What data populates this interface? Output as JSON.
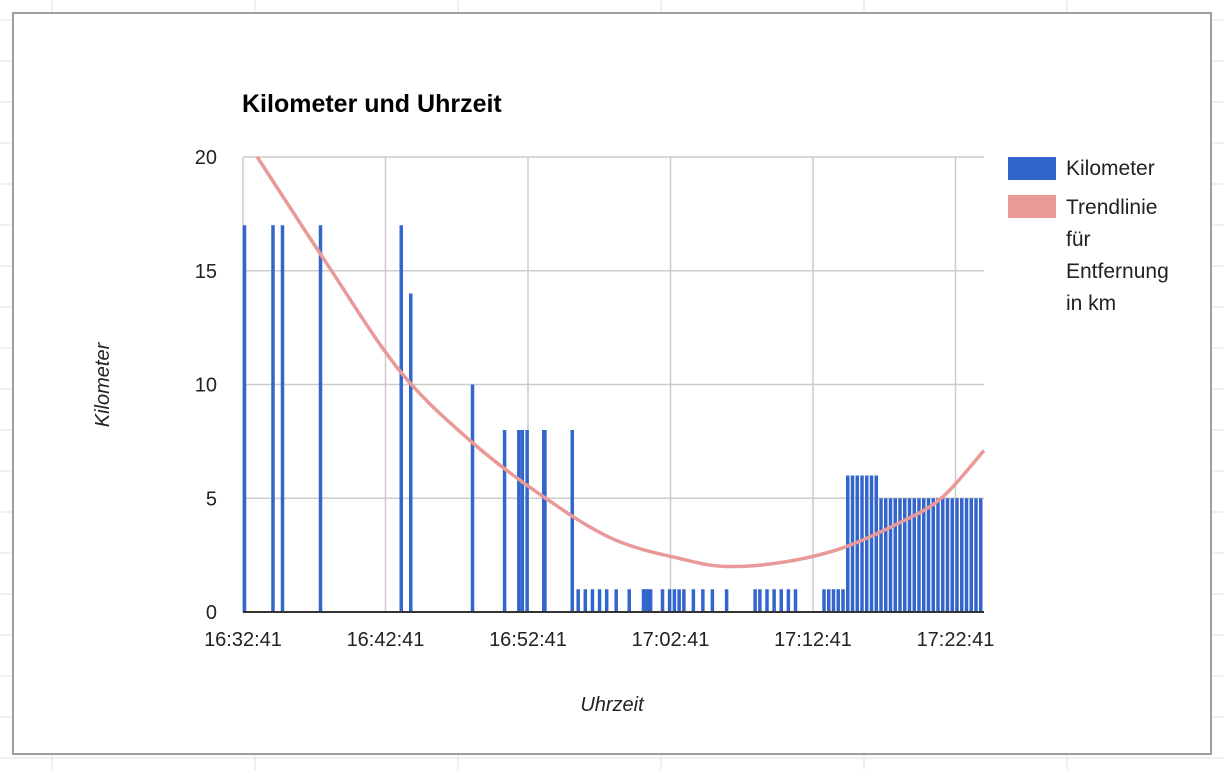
{
  "chart_data": {
    "type": "bar",
    "title": "Kilometer und Uhrzeit",
    "xlabel": "Uhrzeit",
    "ylabel": "Kilometer",
    "ylim": [
      0,
      20
    ],
    "yticks": [
      0,
      5,
      10,
      15,
      20
    ],
    "xlim": [
      "16:32:41",
      "17:24:41"
    ],
    "xticks": [
      "16:32:41",
      "16:42:41",
      "16:52:41",
      "17:02:41",
      "17:12:41",
      "17:22:41"
    ],
    "grid": true,
    "legend_position": "right",
    "series": [
      {
        "name": "Kilometer",
        "color": "#3366cc",
        "points": [
          {
            "x": "16:32:41",
            "y": 17
          },
          {
            "x": "16:34:41",
            "y": 17
          },
          {
            "x": "16:35:21",
            "y": 17
          },
          {
            "x": "16:38:01",
            "y": 17
          },
          {
            "x": "16:43:41",
            "y": 17
          },
          {
            "x": "16:44:21",
            "y": 14
          },
          {
            "x": "16:48:41",
            "y": 10
          },
          {
            "x": "16:50:56",
            "y": 8
          },
          {
            "x": "16:51:56",
            "y": 8
          },
          {
            "x": "16:52:11",
            "y": 8
          },
          {
            "x": "16:52:31",
            "y": 8
          },
          {
            "x": "16:53:41",
            "y": 8
          },
          {
            "x": "16:53:46",
            "y": 8
          },
          {
            "x": "16:55:41",
            "y": 8
          },
          {
            "x": "16:56:06",
            "y": 1
          },
          {
            "x": "16:56:36",
            "y": 1
          },
          {
            "x": "16:57:06",
            "y": 1
          },
          {
            "x": "16:57:36",
            "y": 1
          },
          {
            "x": "16:58:06",
            "y": 1
          },
          {
            "x": "16:58:46",
            "y": 1
          },
          {
            "x": "16:59:41",
            "y": 1
          },
          {
            "x": "17:00:41",
            "y": 1
          },
          {
            "x": "17:00:51",
            "y": 1
          },
          {
            "x": "17:01:01",
            "y": 1
          },
          {
            "x": "17:01:11",
            "y": 1
          },
          {
            "x": "17:02:01",
            "y": 1
          },
          {
            "x": "17:02:31",
            "y": 1
          },
          {
            "x": "17:02:51",
            "y": 1
          },
          {
            "x": "17:03:11",
            "y": 1
          },
          {
            "x": "17:03:31",
            "y": 1
          },
          {
            "x": "17:04:11",
            "y": 1
          },
          {
            "x": "17:04:51",
            "y": 1
          },
          {
            "x": "17:05:31",
            "y": 1
          },
          {
            "x": "17:06:31",
            "y": 1
          },
          {
            "x": "17:08:31",
            "y": 1
          },
          {
            "x": "17:08:51",
            "y": 1
          },
          {
            "x": "17:09:21",
            "y": 1
          },
          {
            "x": "17:09:51",
            "y": 1
          },
          {
            "x": "17:10:21",
            "y": 1
          },
          {
            "x": "17:10:51",
            "y": 1
          },
          {
            "x": "17:11:21",
            "y": 1
          },
          {
            "x": "17:13:21",
            "y": 1
          },
          {
            "x": "17:13:41",
            "y": 1
          },
          {
            "x": "17:14:01",
            "y": 1
          },
          {
            "x": "17:14:21",
            "y": 1
          },
          {
            "x": "17:14:41",
            "y": 1
          },
          {
            "x": "17:15:01",
            "y": 6
          },
          {
            "x": "17:15:21",
            "y": 6
          },
          {
            "x": "17:15:41",
            "y": 6
          },
          {
            "x": "17:16:01",
            "y": 6
          },
          {
            "x": "17:16:21",
            "y": 6
          },
          {
            "x": "17:16:41",
            "y": 6
          },
          {
            "x": "17:17:01",
            "y": 6
          },
          {
            "x": "17:17:21",
            "y": 5
          },
          {
            "x": "17:17:41",
            "y": 5
          },
          {
            "x": "17:18:01",
            "y": 5
          },
          {
            "x": "17:18:21",
            "y": 5
          },
          {
            "x": "17:18:41",
            "y": 5
          },
          {
            "x": "17:19:01",
            "y": 5
          },
          {
            "x": "17:19:21",
            "y": 5
          },
          {
            "x": "17:19:41",
            "y": 5
          },
          {
            "x": "17:20:01",
            "y": 5
          },
          {
            "x": "17:20:21",
            "y": 5
          },
          {
            "x": "17:20:41",
            "y": 5
          },
          {
            "x": "17:21:01",
            "y": 5
          },
          {
            "x": "17:21:21",
            "y": 5
          },
          {
            "x": "17:21:41",
            "y": 5
          },
          {
            "x": "17:22:01",
            "y": 5
          },
          {
            "x": "17:22:21",
            "y": 5
          },
          {
            "x": "17:22:41",
            "y": 5
          },
          {
            "x": "17:23:01",
            "y": 5
          },
          {
            "x": "17:23:21",
            "y": 5
          },
          {
            "x": "17:23:41",
            "y": 5
          },
          {
            "x": "17:24:01",
            "y": 5
          },
          {
            "x": "17:24:21",
            "y": 5
          }
        ]
      },
      {
        "name": "Trendlinie für Entfernung in km",
        "color": "#ea9999",
        "type": "line",
        "points": [
          {
            "x": "16:33:41",
            "y": 20
          },
          {
            "x": "16:38:41",
            "y": 15.2
          },
          {
            "x": "16:43:41",
            "y": 10.6
          },
          {
            "x": "16:48:41",
            "y": 7.5
          },
          {
            "x": "16:53:41",
            "y": 5.1
          },
          {
            "x": "16:58:41",
            "y": 3.2
          },
          {
            "x": "17:03:41",
            "y": 2.3
          },
          {
            "x": "17:06:41",
            "y": 2.0
          },
          {
            "x": "17:10:41",
            "y": 2.2
          },
          {
            "x": "17:14:41",
            "y": 2.8
          },
          {
            "x": "17:18:41",
            "y": 3.9
          },
          {
            "x": "17:21:41",
            "y": 5.0
          },
          {
            "x": "17:24:41",
            "y": 7.1
          }
        ]
      }
    ]
  }
}
